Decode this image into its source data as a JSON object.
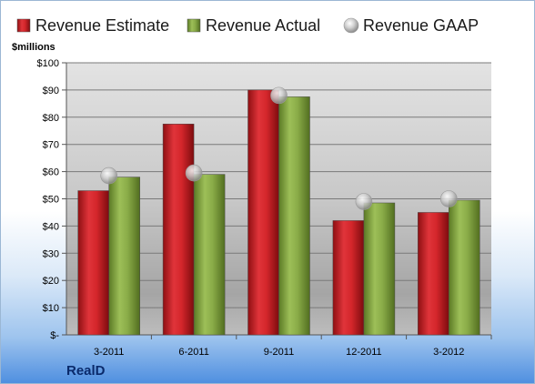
{
  "company": "RealD",
  "chart_data": {
    "type": "bar",
    "unit_label": "$millions",
    "categories": [
      "3-2011",
      "6-2011",
      "9-2011",
      "12-2011",
      "3-2012"
    ],
    "series": [
      {
        "name": "Revenue Estimate",
        "kind": "bar",
        "color": "#d42a2f",
        "values": [
          53,
          77.5,
          90,
          42,
          45
        ]
      },
      {
        "name": "Revenue Actual",
        "kind": "bar",
        "color": "#8fb04a",
        "values": [
          58,
          59,
          87.5,
          48.5,
          49.5
        ]
      },
      {
        "name": "Revenue GAAP",
        "kind": "marker",
        "color": "#bfbfbf",
        "values": [
          58.5,
          59.5,
          88,
          49,
          50
        ]
      }
    ],
    "ylim": [
      0,
      100
    ],
    "yticks": [
      0,
      10,
      20,
      30,
      40,
      50,
      60,
      70,
      80,
      90,
      100
    ],
    "ytick_labels": [
      "$-",
      "$10",
      "$20",
      "$30",
      "$40",
      "$50",
      "$60",
      "$70",
      "$80",
      "$90",
      "$100"
    ],
    "grid": true,
    "legend_position": "top"
  }
}
